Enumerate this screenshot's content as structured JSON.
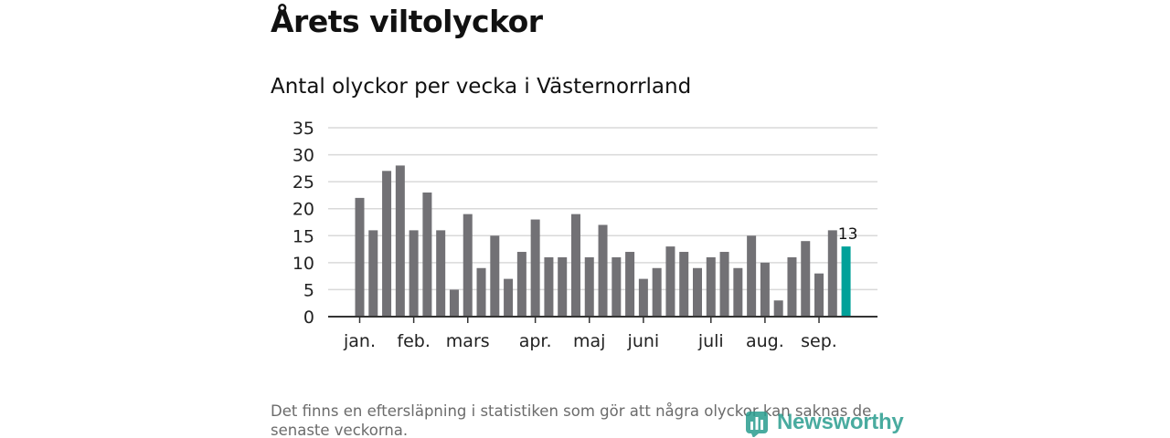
{
  "header": {
    "title": "Årets viltolyckor",
    "subtitle": "Antal olyckor per vecka i Västernorrland"
  },
  "footer": {
    "note": "Det finns en eftersläpning i statistiken som gör att några olyckor kan saknas de senaste veckorna.",
    "brand": "Newsworthy",
    "brand_icon": "newsworthy-logo-icon"
  },
  "colors": {
    "bar": "#727175",
    "highlight": "#00a199",
    "grid": "#d9d9d9",
    "axis": "#333333",
    "brand": "#2a9d8f"
  },
  "chart_data": {
    "type": "bar",
    "title": "Antal olyckor per vecka i Västernorrland",
    "xlabel": "",
    "ylabel": "",
    "ylim": [
      0,
      35
    ],
    "yticks": [
      0,
      5,
      10,
      15,
      20,
      25,
      30,
      35
    ],
    "grid": true,
    "legend": "none",
    "values": [
      22,
      16,
      27,
      28,
      16,
      23,
      16,
      5,
      19,
      9,
      15,
      7,
      12,
      18,
      11,
      11,
      19,
      11,
      17,
      11,
      12,
      7,
      9,
      13,
      12,
      9,
      11,
      12,
      9,
      15,
      10,
      3,
      11,
      14,
      8,
      16,
      13
    ],
    "highlight_index": 36,
    "highlight_label": "13",
    "month_labels": [
      {
        "label": "jan.",
        "bar_index": 0
      },
      {
        "label": "feb.",
        "bar_index": 4
      },
      {
        "label": "mars",
        "bar_index": 8
      },
      {
        "label": "apr.",
        "bar_index": 13
      },
      {
        "label": "maj",
        "bar_index": 17
      },
      {
        "label": "juni",
        "bar_index": 21
      },
      {
        "label": "juli",
        "bar_index": 26
      },
      {
        "label": "aug.",
        "bar_index": 30
      },
      {
        "label": "sep.",
        "bar_index": 34
      }
    ]
  }
}
